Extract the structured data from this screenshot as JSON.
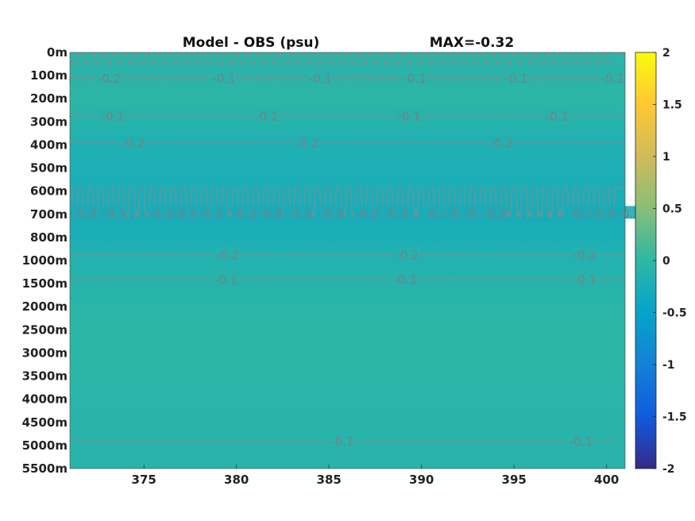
{
  "chart_data": {
    "type": "heatmap",
    "title": "Model - OBS (psu)",
    "annotation": "MAX=-0.32",
    "xlim": [
      371,
      401
    ],
    "x_ticks": [
      375,
      380,
      385,
      390,
      395,
      400
    ],
    "y_levels": [
      "0m",
      "100m",
      "200m",
      "300m",
      "400m",
      "500m",
      "600m",
      "700m",
      "800m",
      "1000m",
      "1500m",
      "2000m",
      "2500m",
      "3000m",
      "3500m",
      "4000m",
      "4500m",
      "5000m",
      "5500m"
    ],
    "colorbar": {
      "range": [
        -2,
        2
      ],
      "ticks": [
        "2",
        "1.5",
        "1",
        "0.5",
        "0",
        "-0.5",
        "-1",
        "-1.5",
        "-2"
      ],
      "colormap": "parula"
    },
    "field_by_level": [
      -0.05,
      -0.08,
      -0.02,
      -0.1,
      -0.18,
      -0.22,
      -0.24,
      -0.28,
      -0.24,
      -0.14,
      -0.1,
      -0.05,
      -0.02,
      -0.03,
      -0.04,
      -0.06,
      -0.07,
      -0.08,
      -0.07
    ],
    "contour_label_rows": [
      {
        "level_index": 1.1,
        "labels": [
          "-0.2",
          "-0.1",
          "-0.1",
          "-0.1",
          "-0.1",
          "-0.1"
        ],
        "x": [
          372.5,
          378.7,
          383.9,
          389.0,
          394.5,
          399.7
        ]
      },
      {
        "level_index": 2.75,
        "labels": [
          "-0.1",
          "-0.1",
          "-0.1",
          "-0.1"
        ],
        "x": [
          372.7,
          381.0,
          388.7,
          396.7
        ]
      },
      {
        "level_index": 3.9,
        "labels": [
          "-0.2",
          "-0.2",
          "-0.2"
        ],
        "x": [
          373.8,
          383.2,
          393.7
        ]
      },
      {
        "level_index": 6.95,
        "labels": [
          "-0.3",
          "-0.3",
          "-0.3",
          "-0.3",
          "-0.3",
          "-0.3",
          "-0.3",
          "-0.3",
          "-0.3",
          "-0.3",
          "-0.3",
          "-0.3",
          "-0.3",
          "-0.3",
          "-0.3",
          "-0.3",
          "-0.3",
          "-0.3"
        ],
        "x": [
          371.2,
          372.8,
          375.3,
          376.6,
          378.0,
          379.8,
          381.2,
          382.8,
          384.5,
          386.4,
          388.0,
          390.2,
          391.4,
          392.3,
          393.3,
          398.0,
          399.2,
          400.6
        ]
      },
      {
        "level_index": 8.75,
        "labels": [
          "-0.2",
          "-0.2",
          "-0.2"
        ],
        "x": [
          378.9,
          388.6,
          398.2
        ]
      },
      {
        "level_index": 9.8,
        "labels": [
          "-0.1",
          "-0.1",
          "-0.1"
        ],
        "x": [
          378.8,
          388.5,
          398.2
        ]
      },
      {
        "level_index": 16.8,
        "labels": [
          "-0.1",
          "-0.1"
        ],
        "x": [
          385.1,
          398.0
        ]
      }
    ]
  }
}
